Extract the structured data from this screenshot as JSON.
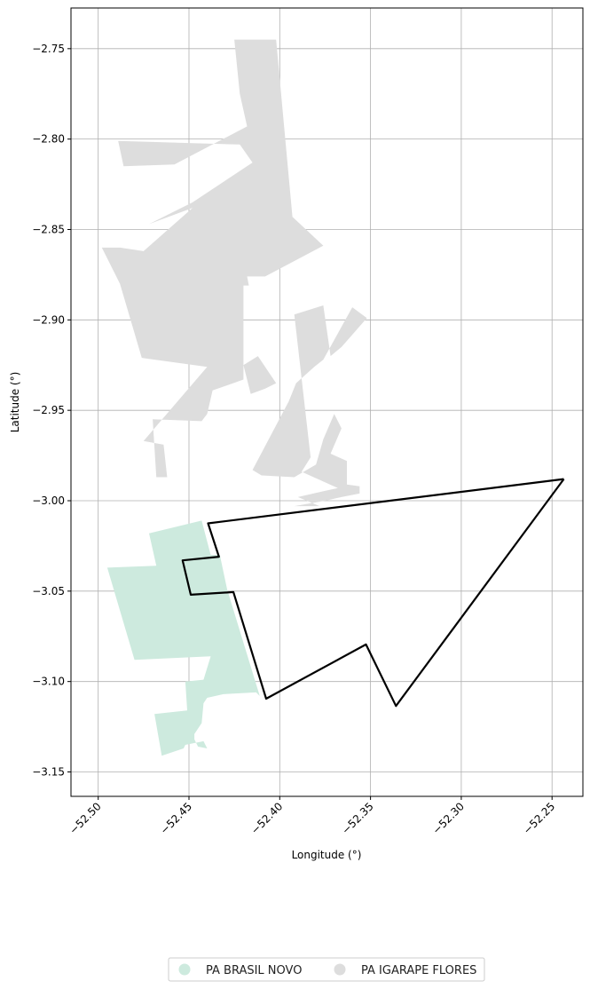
{
  "chart_data": {
    "type": "map",
    "xlabel": "Longitude (°)",
    "ylabel": "Latitude (°)",
    "xlim": [
      -52.515,
      -52.233
    ],
    "ylim": [
      -3.1635,
      -2.7275
    ],
    "x_ticks": [
      -52.5,
      -52.45,
      -52.4,
      -52.35,
      -52.3,
      -52.25
    ],
    "x_tick_labels": [
      "−52.50",
      "−52.45",
      "−52.40",
      "−52.35",
      "−52.30",
      "−52.25"
    ],
    "y_ticks": [
      -2.75,
      -2.8,
      -2.85,
      -2.9,
      -2.95,
      -3.0,
      -3.05,
      -3.1,
      -3.15
    ],
    "y_tick_labels": [
      "−2.75",
      "−2.80",
      "−2.85",
      "−2.90",
      "−2.95",
      "−3.00",
      "−3.05",
      "−3.10",
      "−3.15"
    ],
    "grid": true,
    "legend_placement": "bottom-center",
    "layers": [
      {
        "name": "PA BRASIL NOVO",
        "color": "#cdeade",
        "polygons": [
          [
            [
              -52.472,
              -3.018
            ],
            [
              -52.443,
              -3.011
            ],
            [
              -52.438,
              -3.03
            ],
            [
              -52.433,
              -3.03
            ],
            [
              -52.429,
              -3.049
            ],
            [
              -52.411,
              -3.108
            ],
            [
              -52.413,
              -3.106
            ],
            [
              -52.431,
              -3.107
            ],
            [
              -52.44,
              -3.109
            ],
            [
              -52.442,
              -3.112
            ],
            [
              -52.443,
              -3.123
            ],
            [
              -52.447,
              -3.129
            ],
            [
              -52.447,
              -3.132
            ],
            [
              -52.445,
              -3.136
            ],
            [
              -52.44,
              -3.137
            ],
            [
              -52.442,
              -3.133
            ],
            [
              -52.452,
              -3.135
            ],
            [
              -52.453,
              -3.137
            ],
            [
              -52.465,
              -3.141
            ],
            [
              -52.469,
              -3.118
            ],
            [
              -52.451,
              -3.116
            ],
            [
              -52.452,
              -3.1
            ],
            [
              -52.442,
              -3.099
            ],
            [
              -52.438,
              -3.086
            ],
            [
              -52.48,
              -3.088
            ],
            [
              -52.495,
              -3.037
            ],
            [
              -52.468,
              -3.036
            ]
          ]
        ]
      },
      {
        "name": "PA IGARAPE FLORES",
        "color": "#dddddd",
        "polygons": [
          [
            [
              -52.425,
              -2.745
            ],
            [
              -52.402,
              -2.745
            ],
            [
              -52.393,
              -2.843
            ],
            [
              -52.376,
              -2.859
            ],
            [
              -52.408,
              -2.876
            ],
            [
              -52.418,
              -2.876
            ],
            [
              -52.417,
              -2.881
            ],
            [
              -52.42,
              -2.881
            ],
            [
              -52.42,
              -2.933
            ],
            [
              -52.437,
              -2.939
            ],
            [
              -52.44,
              -2.952
            ],
            [
              -52.443,
              -2.956
            ],
            [
              -52.47,
              -2.955
            ],
            [
              -52.468,
              -2.987
            ],
            [
              -52.462,
              -2.987
            ],
            [
              -52.464,
              -2.969
            ],
            [
              -52.475,
              -2.967
            ],
            [
              -52.44,
              -2.926
            ],
            [
              -52.476,
              -2.921
            ],
            [
              -52.488,
              -2.88
            ],
            [
              -52.498,
              -2.86
            ],
            [
              -52.488,
              -2.86
            ],
            [
              -52.475,
              -2.862
            ],
            [
              -52.448,
              -2.838
            ],
            [
              -52.472,
              -2.847
            ],
            [
              -52.448,
              -2.835
            ],
            [
              -52.415,
              -2.813
            ],
            [
              -52.422,
              -2.803
            ],
            [
              -52.489,
              -2.801
            ],
            [
              -52.486,
              -2.815
            ],
            [
              -52.458,
              -2.814
            ],
            [
              -52.418,
              -2.793
            ],
            [
              -52.422,
              -2.775
            ]
          ],
          [
            [
              -52.42,
              -2.925
            ],
            [
              -52.412,
              -2.92
            ],
            [
              -52.402,
              -2.935
            ],
            [
              -52.408,
              -2.938
            ],
            [
              -52.416,
              -2.941
            ],
            [
              -52.418,
              -2.933
            ]
          ],
          [
            [
              -52.392,
              -2.897
            ],
            [
              -52.376,
              -2.892
            ],
            [
              -52.372,
              -2.92
            ],
            [
              -52.366,
              -2.915
            ],
            [
              -52.352,
              -2.899
            ],
            [
              -52.36,
              -2.893
            ],
            [
              -52.376,
              -2.922
            ],
            [
              -52.381,
              -2.926
            ],
            [
              -52.391,
              -2.935
            ],
            [
              -52.395,
              -2.945
            ],
            [
              -52.415,
              -2.983
            ],
            [
              -52.41,
              -2.986
            ],
            [
              -52.392,
              -2.987
            ],
            [
              -52.38,
              -2.98
            ],
            [
              -52.376,
              -2.966
            ],
            [
              -52.37,
              -2.952
            ],
            [
              -52.366,
              -2.96
            ],
            [
              -52.372,
              -2.974
            ],
            [
              -52.363,
              -2.978
            ],
            [
              -52.363,
              -2.991
            ],
            [
              -52.356,
              -2.992
            ],
            [
              -52.356,
              -2.996
            ],
            [
              -52.366,
              -2.998
            ],
            [
              -52.375,
              -3.0
            ],
            [
              -52.392,
              -3.003
            ],
            [
              -52.378,
              -3.003
            ],
            [
              -52.39,
              -2.998
            ],
            [
              -52.377,
              -2.995
            ],
            [
              -52.368,
              -2.993
            ],
            [
              -52.388,
              -2.984
            ],
            [
              -52.383,
              -2.976
            ]
          ]
        ]
      }
    ],
    "outline": {
      "stroke": "#000000",
      "points": [
        [
          -52.2435,
          -2.988
        ],
        [
          -52.4395,
          -3.0125
        ],
        [
          -52.4335,
          -3.031
        ],
        [
          -52.4535,
          -3.033
        ],
        [
          -52.449,
          -3.052
        ],
        [
          -52.4255,
          -3.0505
        ],
        [
          -52.4075,
          -3.1095
        ],
        [
          -52.3525,
          -3.0795
        ],
        [
          -52.336,
          -3.1135
        ],
        [
          -52.2435,
          -2.988
        ]
      ]
    }
  }
}
